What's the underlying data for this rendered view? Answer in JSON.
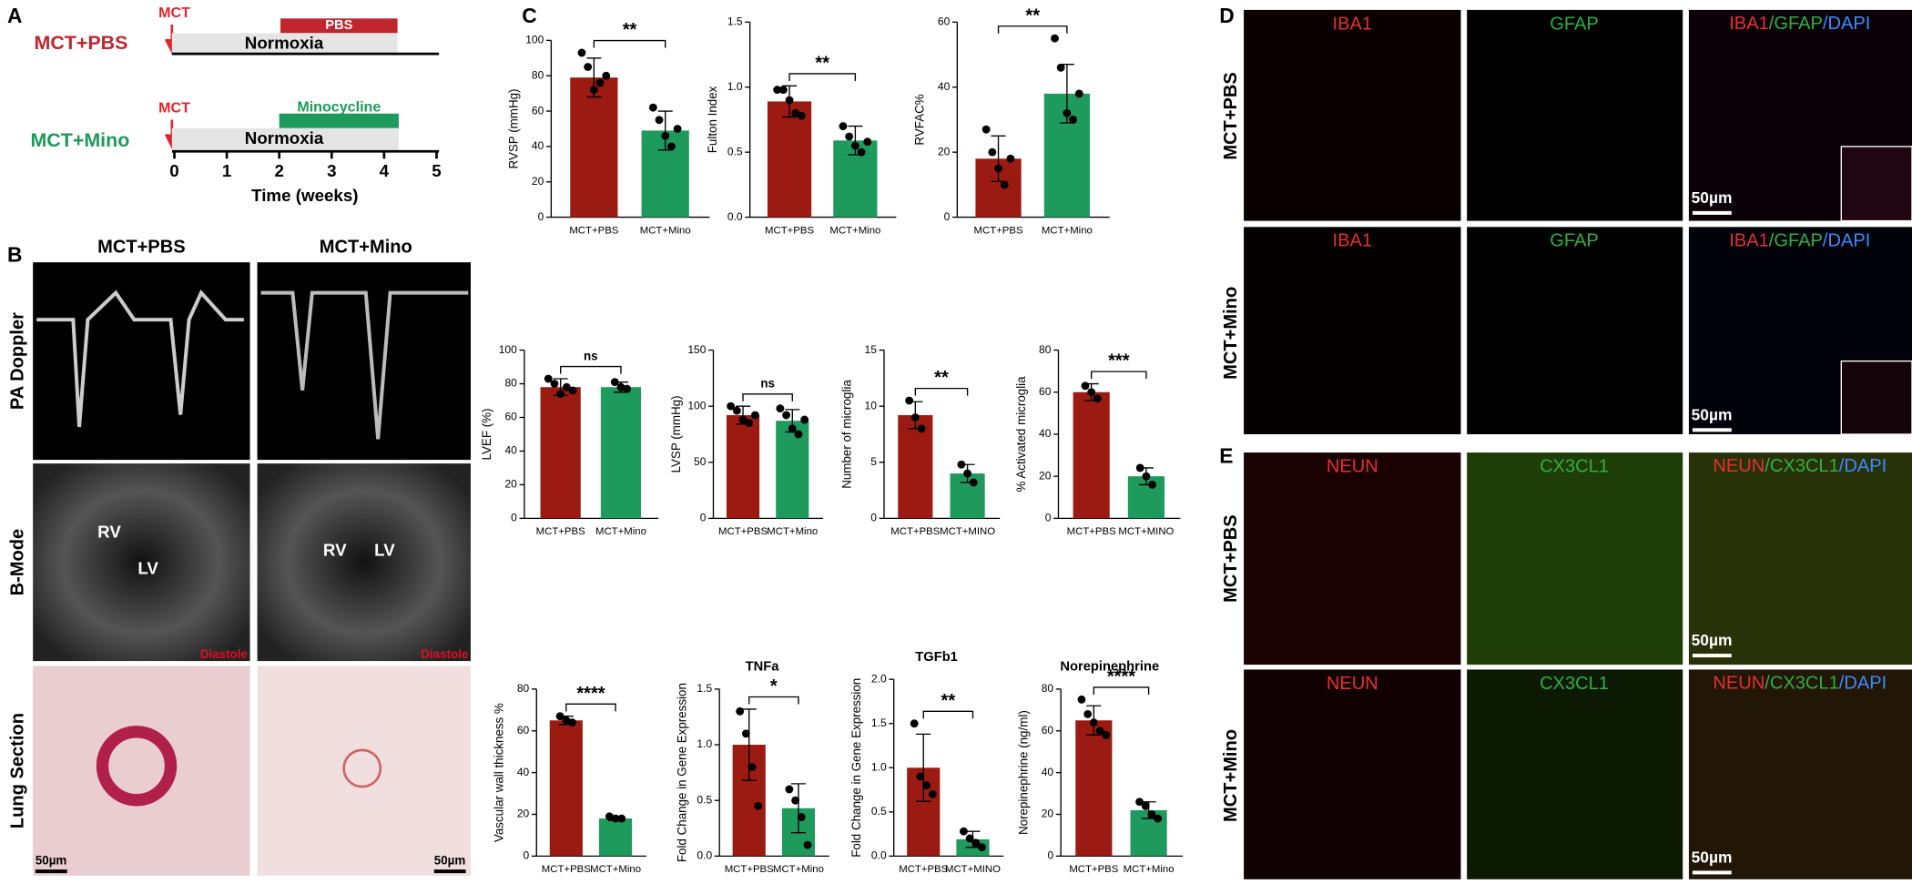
{
  "panels": [
    "A",
    "B",
    "C",
    "D",
    "E"
  ],
  "timeline": {
    "rows": [
      {
        "group": "MCT+PBS",
        "drug": "MCT",
        "treatment": "PBS",
        "condition": "Normoxia"
      },
      {
        "group": "MCT+Mino",
        "drug": "MCT",
        "treatment": "Minocycline",
        "condition": "Normoxia"
      }
    ],
    "ticks": [
      0,
      1,
      2,
      3,
      4,
      5
    ],
    "xlabel": "Time (weeks)"
  },
  "echo": {
    "columns": [
      "MCT+PBS",
      "MCT+Mino"
    ],
    "rows": [
      "PA Doppler",
      "B-Mode",
      "Lung Section"
    ],
    "labels": [
      "RV",
      "LV",
      "RV",
      "LV"
    ],
    "phase": [
      "Diastole",
      "Diastole"
    ],
    "scale": [
      "50µm",
      "50µm"
    ]
  },
  "iba1": {
    "rows": [
      "MCT+PBS",
      "MCT+Mino"
    ],
    "channels": [
      "IBA1",
      "GFAP"
    ],
    "merge": [
      "IBA1",
      "/GFAP",
      "/DAPI"
    ],
    "scale": [
      "50µm",
      "50µm"
    ]
  },
  "neun": {
    "rows": [
      "MCT+PBS",
      "MCT+Mino"
    ],
    "channels": [
      "NEUN",
      "CX3CL1"
    ],
    "merge": [
      "NEUN",
      "/CX3CL1",
      "/DAPI"
    ],
    "scale": [
      "50µm",
      "50µm"
    ]
  },
  "chart_data": [
    {
      "type": "bar",
      "ylabel": "RVSP (mmHg)",
      "categories": [
        "MCT+PBS",
        "MCT+Mino"
      ],
      "colors": [
        "#9b1b12",
        "#1e9a5c"
      ],
      "values": [
        79,
        49
      ],
      "errors": [
        11,
        11
      ],
      "points": [
        [
          93,
          85,
          72,
          76,
          80
        ],
        [
          62,
          55,
          46,
          40,
          50
        ]
      ],
      "ylim": [
        0,
        100
      ],
      "yticks": [
        0,
        20,
        40,
        60,
        80,
        100
      ],
      "significance": "**"
    },
    {
      "type": "bar",
      "ylabel": "Fulton Index",
      "categories": [
        "MCT+PBS",
        "MCT+Mino"
      ],
      "colors": [
        "#9b1b12",
        "#1e9a5c"
      ],
      "values": [
        0.89,
        0.59
      ],
      "errors": [
        0.12,
        0.11
      ],
      "points": [
        [
          0.98,
          0.98,
          0.9,
          0.8,
          0.78
        ],
        [
          0.7,
          0.62,
          0.55,
          0.5,
          0.58
        ]
      ],
      "ylim": [
        0,
        1.5
      ],
      "yticks": [
        {
          "value": 0,
          "label": "0.0"
        },
        0.5,
        {
          "value": 1,
          "label": "1.0"
        },
        1.5
      ],
      "significance": "**"
    },
    {
      "type": "bar",
      "ylabel": "RVFAC%",
      "categories": [
        "MCT+PBS",
        "MCT+Mino"
      ],
      "colors": [
        "#9b1b12",
        "#1e9a5c"
      ],
      "values": [
        18,
        38
      ],
      "errors": [
        7,
        9
      ],
      "points": [
        [
          27,
          20,
          15,
          10,
          18
        ],
        [
          55,
          46,
          32,
          30,
          38
        ]
      ],
      "ylim": [
        0,
        60
      ],
      "yticks": [
        0,
        20,
        40,
        60
      ],
      "significance": "**"
    },
    {
      "type": "bar",
      "ylabel": "LVEF (%)",
      "categories": [
        "MCT+PBS",
        "MCT+Mino"
      ],
      "colors": [
        "#9b1b12",
        "#1e9a5c"
      ],
      "values": [
        78,
        78
      ],
      "errors": [
        5,
        3
      ],
      "points": [
        [
          83,
          80,
          74,
          78,
          76
        ],
        [
          81,
          78,
          77
        ]
      ],
      "ylim": [
        0,
        100
      ],
      "yticks": [
        0,
        20,
        40,
        60,
        80,
        100
      ],
      "significance": "ns"
    },
    {
      "type": "bar",
      "ylabel": "LVSP (mmHg)",
      "categories": [
        "MCT+PBS",
        "MCT+Mino"
      ],
      "colors": [
        "#9b1b12",
        "#1e9a5c"
      ],
      "values": [
        92,
        87
      ],
      "errors": [
        8,
        10
      ],
      "points": [
        [
          100,
          96,
          88,
          85,
          92
        ],
        [
          98,
          92,
          80,
          75,
          88
        ]
      ],
      "ylim": [
        0,
        150
      ],
      "yticks": [
        0,
        50,
        100,
        150
      ],
      "significance": "ns"
    },
    {
      "type": "bar",
      "ylabel": "Number of microglia",
      "categories": [
        "MCT+PBS",
        "MCT+MINO"
      ],
      "colors": [
        "#9b1b12",
        "#1e9a5c"
      ],
      "values": [
        9.2,
        4.0
      ],
      "errors": [
        1.2,
        0.8
      ],
      "points": [
        [
          10.5,
          9,
          8
        ],
        [
          4.8,
          4,
          3.2
        ]
      ],
      "ylim": [
        0,
        15
      ],
      "yticks": [
        0,
        5,
        10,
        15
      ],
      "significance": "**"
    },
    {
      "type": "bar",
      "ylabel": "% Activated microglia",
      "categories": [
        "MCT+PBS",
        "MCT+MINO"
      ],
      "colors": [
        "#9b1b12",
        "#1e9a5c"
      ],
      "values": [
        60,
        20
      ],
      "errors": [
        4,
        4
      ],
      "points": [
        [
          63,
          60,
          57
        ],
        [
          24,
          20,
          16
        ]
      ],
      "ylim": [
        0,
        80
      ],
      "yticks": [
        0,
        20,
        40,
        60,
        80
      ],
      "significance": "***"
    },
    {
      "type": "bar",
      "ylabel": "Vascular wall thickness %",
      "categories": [
        "MCT+PBS",
        "MCT+Mino"
      ],
      "colors": [
        "#9b1b12",
        "#1e9a5c"
      ],
      "values": [
        65,
        18
      ],
      "errors": [
        2,
        1
      ],
      "points": [
        [
          67,
          65,
          64
        ],
        [
          19,
          18,
          18
        ]
      ],
      "ylim": [
        0,
        80
      ],
      "yticks": [
        0,
        20,
        40,
        60,
        80
      ],
      "significance": "****"
    },
    {
      "type": "bar",
      "title": "TNFa",
      "ylabel": "Fold Change in Gene Expression",
      "categories": [
        "MCT+PBS",
        "MCT+Mino"
      ],
      "colors": [
        "#9b1b12",
        "#1e9a5c"
      ],
      "values": [
        1.0,
        0.43
      ],
      "errors": [
        0.32,
        0.22
      ],
      "points": [
        [
          1.3,
          1.1,
          0.8,
          0.45
        ],
        [
          0.6,
          0.5,
          0.35,
          0.1
        ]
      ],
      "ylim": [
        0,
        1.5
      ],
      "yticks": [
        {
          "value": 0,
          "label": "0.0"
        },
        0.5,
        {
          "value": 1,
          "label": "1.0"
        },
        1.5
      ],
      "significance": "*"
    },
    {
      "type": "bar",
      "title": "TGFb1",
      "ylabel": "Fold Change in Gene Expression",
      "categories": [
        "MCT+PBS",
        "MCT+MINO"
      ],
      "colors": [
        "#9b1b12",
        "#1e9a5c"
      ],
      "values": [
        1.0,
        0.19
      ],
      "errors": [
        0.38,
        0.09
      ],
      "points": [
        [
          1.5,
          0.9,
          0.8,
          0.7
        ],
        [
          0.28,
          0.2,
          0.15,
          0.1
        ]
      ],
      "ylim": [
        0,
        2
      ],
      "yticks": [
        {
          "value": 0,
          "label": "0.0"
        },
        0.5,
        {
          "value": 1,
          "label": "1.0"
        },
        1.5,
        {
          "value": 2,
          "label": "2.0"
        }
      ],
      "significance": "**"
    },
    {
      "type": "bar",
      "title": "Norepinephrine",
      "ylabel": "Norepinephrine (ng/ml)",
      "categories": [
        "MCT+PBS",
        "MCT+Mino"
      ],
      "colors": [
        "#9b1b12",
        "#1e9a5c"
      ],
      "values": [
        65,
        22
      ],
      "errors": [
        7,
        4
      ],
      "points": [
        [
          75,
          68,
          64,
          60,
          58
        ],
        [
          26,
          24,
          20,
          18
        ]
      ],
      "ylim": [
        0,
        80
      ],
      "yticks": [
        0,
        20,
        40,
        60,
        80
      ],
      "significance": "****"
    }
  ]
}
